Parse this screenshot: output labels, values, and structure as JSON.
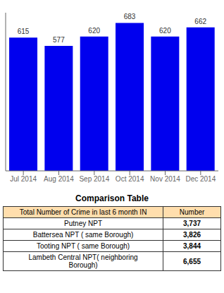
{
  "chart_data": [
    {
      "type": "bar",
      "categories": [
        "Jul 2014",
        "Aug 2014",
        "Sep 2014",
        "Oct 2014",
        "Nov 2014",
        "Dec 2014"
      ],
      "values": [
        615,
        577,
        620,
        683,
        620,
        662
      ],
      "color": "#0000EE",
      "ylim": [
        0,
        730
      ],
      "grid": false,
      "data_labels": true,
      "tick_labels": "x"
    },
    {
      "type": "table",
      "title": "Comparison Table",
      "columns": [
        "Total Number of Crime in last 6 month IN",
        "Number"
      ],
      "categories": [
        "Putney NPT",
        "Battersea NPT ( same Borough)",
        "Tooting NPT ( same Borough)",
        "Lambeth Central NPT( neighboring\nBorough)"
      ],
      "values": [
        3737,
        3826,
        3844,
        6655
      ],
      "value_labels": [
        "3,737",
        "3,826",
        "3,844",
        "6,655"
      ]
    }
  ]
}
